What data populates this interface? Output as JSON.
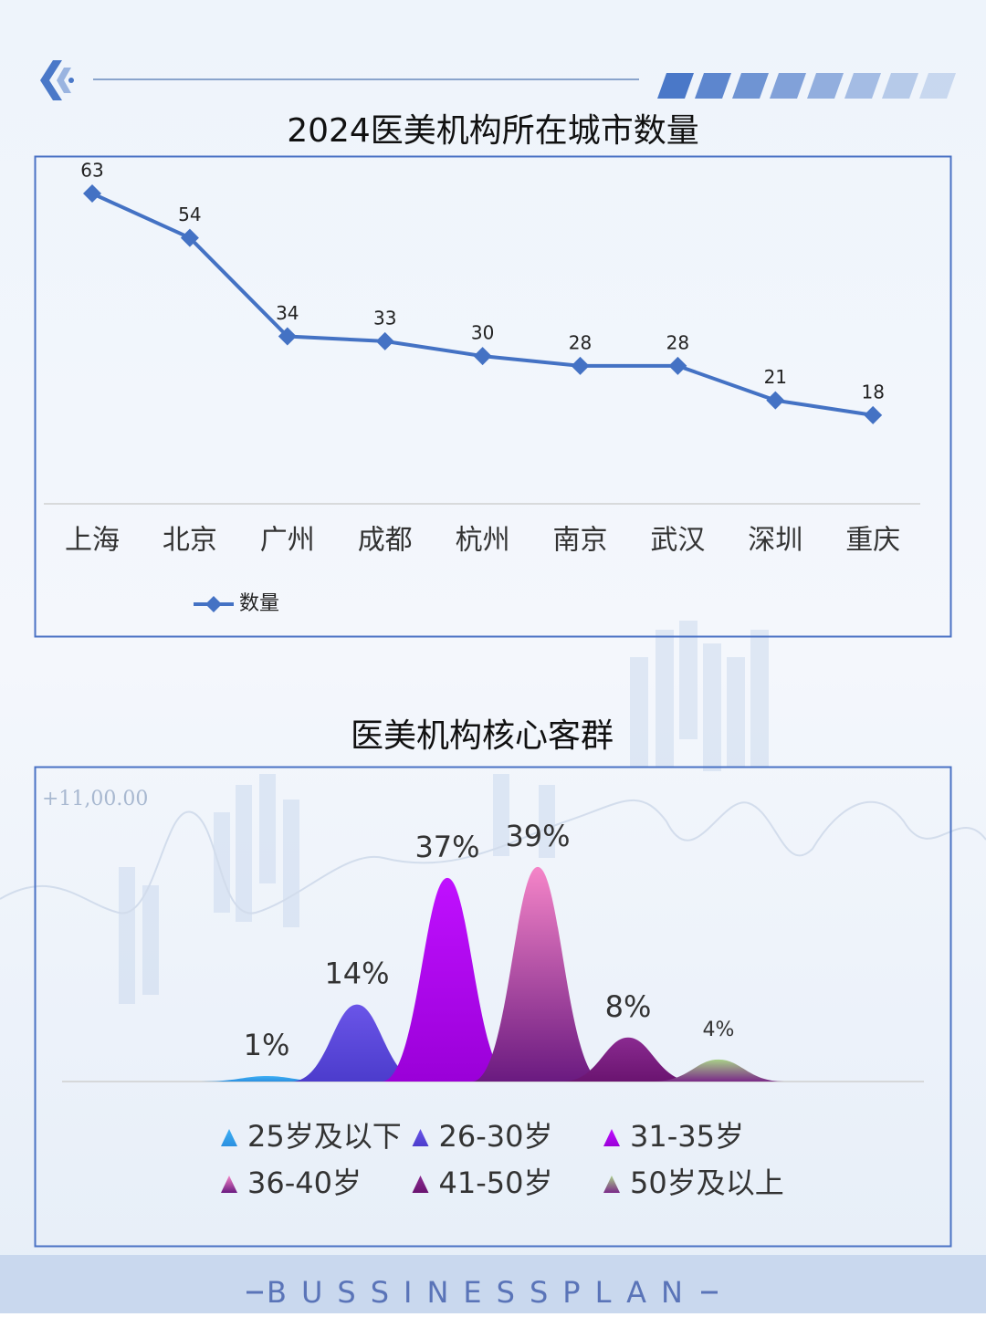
{
  "chart_data": [
    {
      "type": "line",
      "title": "2024医美机构所在城市数量",
      "categories": [
        "上海",
        "北京",
        "广州",
        "成都",
        "杭州",
        "南京",
        "武汉",
        "深圳",
        "重庆"
      ],
      "series": [
        {
          "name": "数量",
          "color": "#4472c4",
          "values": [
            63,
            54,
            34,
            33,
            30,
            28,
            28,
            21,
            18
          ]
        }
      ]
    },
    {
      "type": "peak",
      "title": "医美机构核心客群",
      "categories": [
        "25岁及以下",
        "26-30岁",
        "31-35岁",
        "36-40岁",
        "41-50岁",
        "50岁及以上"
      ],
      "values": [
        1,
        14,
        37,
        39,
        8,
        4
      ],
      "value_labels": [
        "1%",
        "14%",
        "37%",
        "39%",
        "8%",
        "4%"
      ],
      "colors": [
        [
          "#3fb0f5",
          "#2a90e0"
        ],
        [
          "#6a55e8",
          "#4c3ccc"
        ],
        [
          "#c010ff",
          "#9a00d8"
        ],
        [
          "#f585c8",
          "#6a1a80"
        ],
        [
          "#8a2a90",
          "#6a1470"
        ],
        [
          "#a8d088",
          "#7a2a88"
        ]
      ]
    }
  ],
  "background_text": "+11,00.00",
  "footer": "BUSSINESSPLAN"
}
